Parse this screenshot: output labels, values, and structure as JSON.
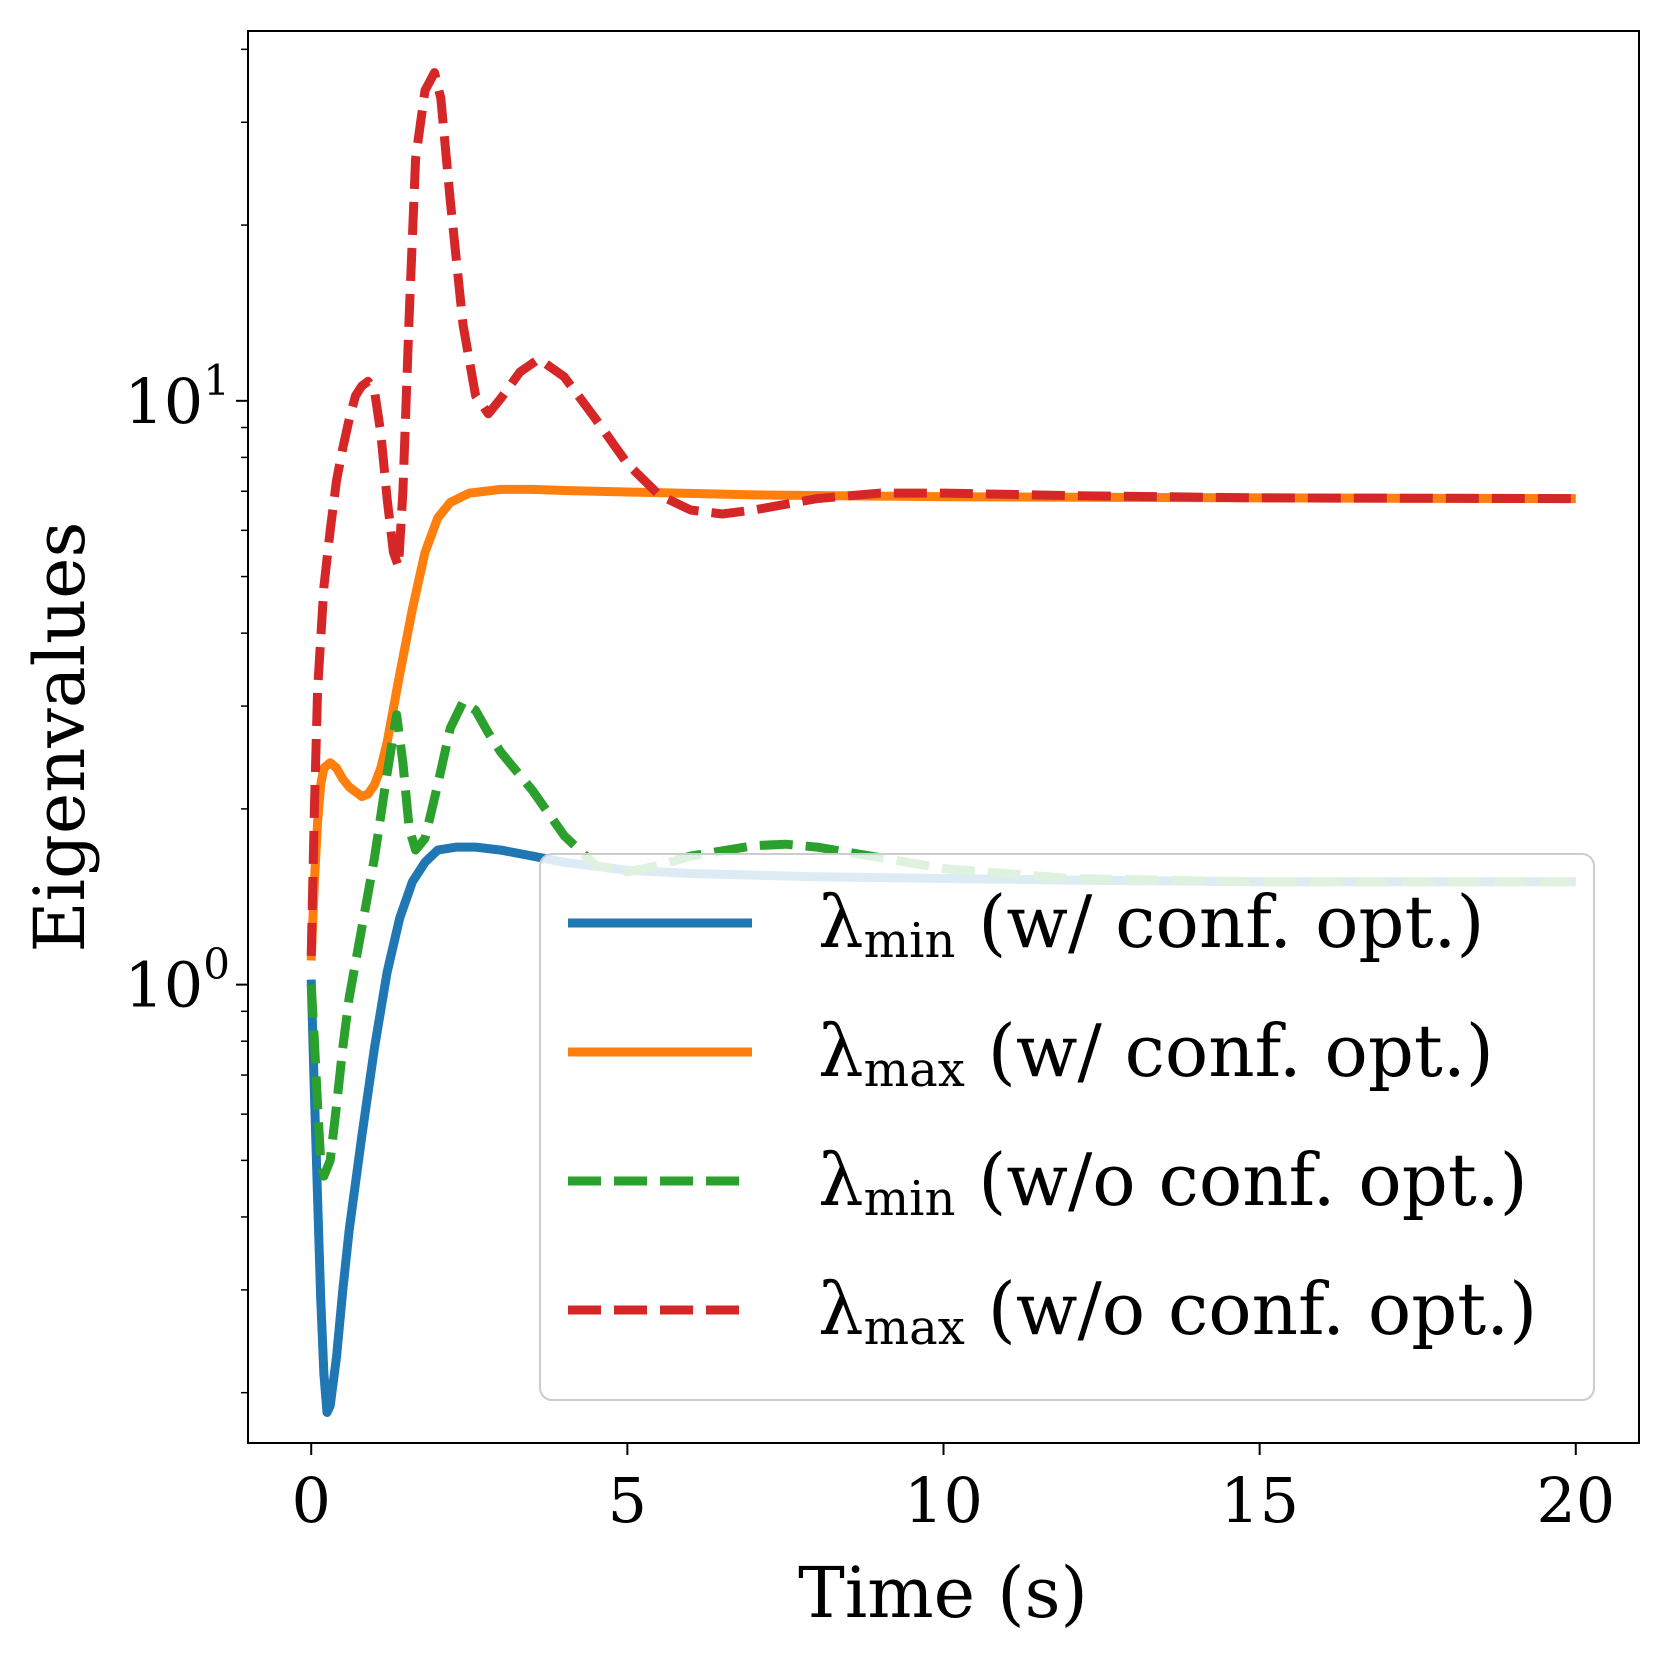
{
  "chart_data": {
    "type": "line",
    "xlabel": "Time (s)",
    "ylabel": "Eigenvalues",
    "yscale": "log",
    "xlim": [
      -1,
      21
    ],
    "ylim": [
      0.164,
      43
    ],
    "xticks": [
      0,
      5,
      10,
      15,
      20
    ],
    "yticks": [
      {
        "value": 1,
        "base": "10",
        "exp": "0"
      },
      {
        "value": 10,
        "base": "10",
        "exp": "1"
      }
    ],
    "grid": false,
    "legend_position": "lower-right",
    "series": [
      {
        "name": "λmin (w/ conf. opt.)",
        "legend_symbol": "λ",
        "legend_sub": "min",
        "legend_rest": "(w/ conf. opt.)",
        "color": "#1f77b4",
        "style": "solid",
        "x": [
          0,
          0.05,
          0.1,
          0.15,
          0.2,
          0.25,
          0.3,
          0.4,
          0.5,
          0.6,
          0.8,
          1.0,
          1.2,
          1.4,
          1.6,
          1.8,
          2.0,
          2.3,
          2.6,
          3.0,
          3.5,
          4.0,
          5.0,
          6.0,
          8.0,
          10.0,
          12.0,
          15.0,
          20.0
        ],
        "y": [
          1.02,
          0.65,
          0.43,
          0.29,
          0.215,
          0.185,
          0.19,
          0.23,
          0.3,
          0.38,
          0.55,
          0.78,
          1.05,
          1.3,
          1.5,
          1.62,
          1.7,
          1.72,
          1.72,
          1.7,
          1.66,
          1.62,
          1.57,
          1.55,
          1.53,
          1.52,
          1.51,
          1.5,
          1.5
        ]
      },
      {
        "name": "λmax (w/ conf. opt.)",
        "legend_symbol": "λ",
        "legend_sub": "max",
        "legend_rest": "(w/ conf. opt.)",
        "color": "#ff7f0e",
        "style": "solid",
        "x": [
          0,
          0.05,
          0.1,
          0.15,
          0.2,
          0.3,
          0.4,
          0.5,
          0.6,
          0.8,
          0.9,
          1.0,
          1.1,
          1.2,
          1.4,
          1.6,
          1.8,
          2.0,
          2.2,
          2.5,
          3.0,
          3.5,
          4.0,
          5.0,
          7.0,
          10.0,
          15.0,
          20.0
        ],
        "y": [
          1.1,
          1.5,
          1.9,
          2.2,
          2.35,
          2.4,
          2.35,
          2.25,
          2.18,
          2.1,
          2.12,
          2.2,
          2.35,
          2.6,
          3.4,
          4.4,
          5.5,
          6.3,
          6.7,
          6.95,
          7.05,
          7.05,
          7.02,
          6.98,
          6.9,
          6.85,
          6.82,
          6.8
        ]
      },
      {
        "name": "λmin (w/o conf. opt.)",
        "legend_symbol": "λ",
        "legend_sub": "min",
        "legend_rest": "(w/o conf. opt.)",
        "color": "#2ca02c",
        "style": "dashed",
        "x": [
          0,
          0.05,
          0.1,
          0.15,
          0.2,
          0.3,
          0.4,
          0.5,
          0.6,
          0.8,
          1.0,
          1.2,
          1.35,
          1.45,
          1.55,
          1.65,
          1.8,
          2.0,
          2.2,
          2.4,
          2.6,
          2.8,
          3.0,
          3.5,
          4.0,
          4.5,
          5.0,
          5.5,
          6.0,
          7.0,
          7.5,
          8.0,
          9.0,
          10.0,
          12.0,
          15.0,
          20.0
        ],
        "y": [
          1.0,
          0.8,
          0.62,
          0.5,
          0.47,
          0.5,
          0.62,
          0.78,
          0.95,
          1.25,
          1.65,
          2.3,
          2.9,
          2.4,
          1.85,
          1.7,
          1.78,
          2.2,
          2.75,
          3.05,
          2.95,
          2.7,
          2.5,
          2.15,
          1.8,
          1.6,
          1.56,
          1.6,
          1.66,
          1.73,
          1.74,
          1.72,
          1.65,
          1.58,
          1.52,
          1.5,
          1.5
        ]
      },
      {
        "name": "λmax (w/o conf. opt.)",
        "legend_symbol": "λ",
        "legend_sub": "max",
        "legend_rest": "(w/o conf. opt.)",
        "color": "#d62728",
        "style": "dashed",
        "x": [
          0,
          0.05,
          0.1,
          0.2,
          0.3,
          0.4,
          0.5,
          0.6,
          0.7,
          0.8,
          0.9,
          1.0,
          1.1,
          1.2,
          1.3,
          1.38,
          1.45,
          1.55,
          1.65,
          1.8,
          1.95,
          2.05,
          2.2,
          2.4,
          2.6,
          2.8,
          3.0,
          3.3,
          3.6,
          4.0,
          4.5,
          5.0,
          5.5,
          6.0,
          6.5,
          7.0,
          8.0,
          9.0,
          10.0,
          12.0,
          15.0,
          20.0
        ],
        "y": [
          1.12,
          2.0,
          3.2,
          4.8,
          6.0,
          7.3,
          8.3,
          9.3,
          10.2,
          10.6,
          10.8,
          10.4,
          8.8,
          6.8,
          5.5,
          5.2,
          7.0,
          14.0,
          26.0,
          34.0,
          36.5,
          33.0,
          22.0,
          13.5,
          10.2,
          9.5,
          10.1,
          11.2,
          11.8,
          11.0,
          9.3,
          7.8,
          6.9,
          6.5,
          6.4,
          6.5,
          6.8,
          6.95,
          6.95,
          6.88,
          6.82,
          6.8
        ]
      }
    ]
  }
}
